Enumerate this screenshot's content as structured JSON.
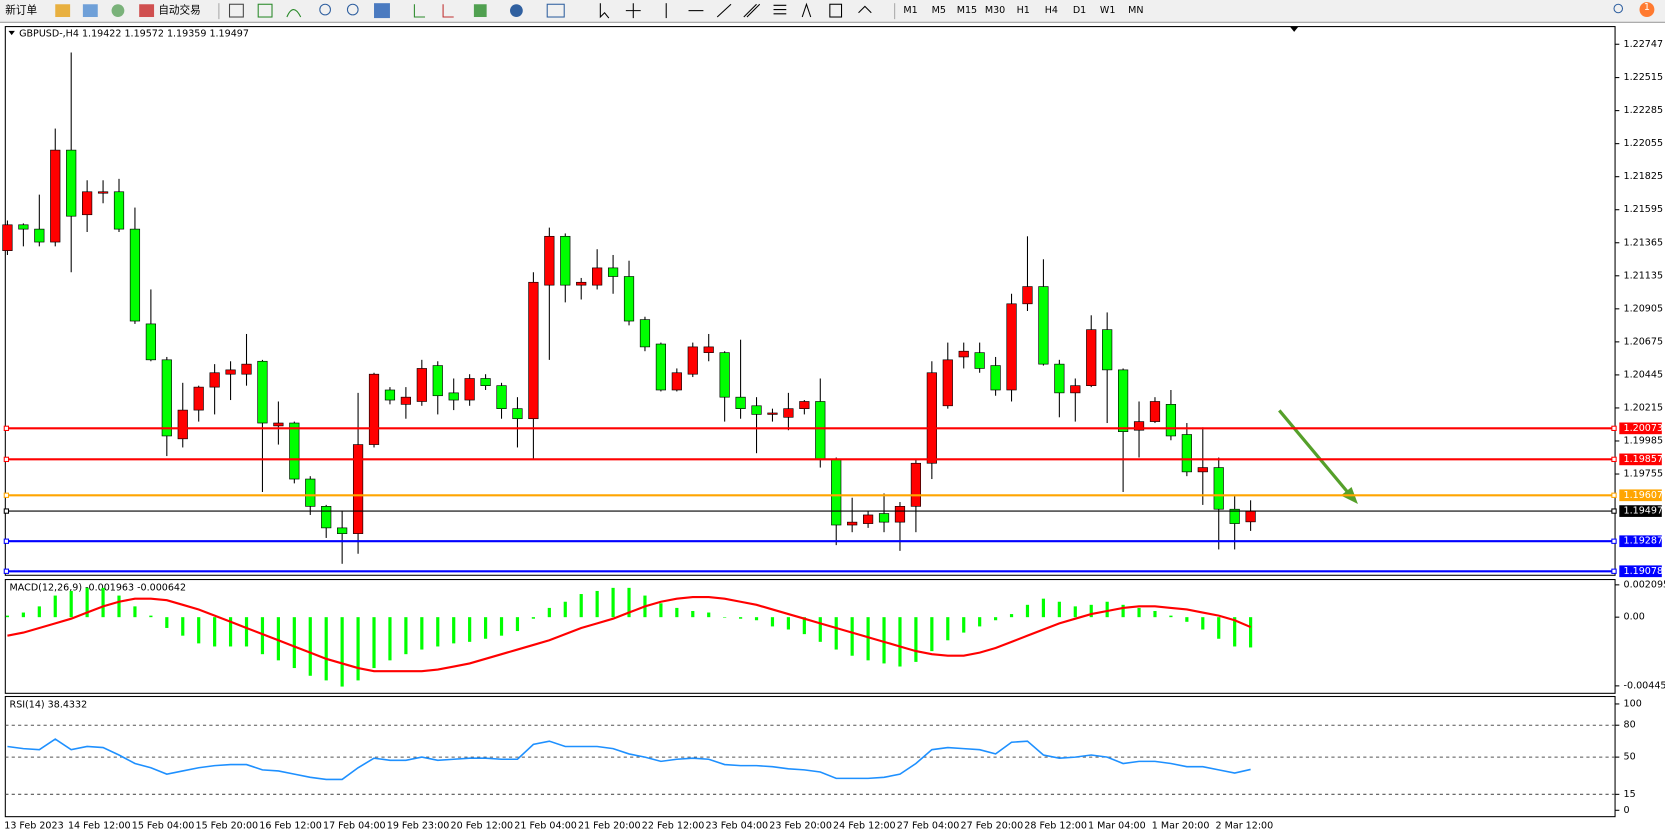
{
  "toolbar": {
    "new_order": "新订单",
    "auto_trade": "自动交易",
    "timeframes": [
      "M1",
      "M5",
      "M15",
      "M30",
      "H1",
      "H4",
      "D1",
      "W1",
      "MN"
    ],
    "badge": "1"
  },
  "chart_data": [
    {
      "type": "candlestick",
      "title": "GBPUSD-,H4  1.19422 1.19572 1.19359 1.19497",
      "categories": [
        "13 Feb 2023",
        null,
        null,
        null,
        "14 Feb 12:00",
        null,
        null,
        null,
        "15 Feb 04:00",
        null,
        null,
        null,
        "15 Feb 20:00",
        null,
        null,
        null,
        "16 Feb 12:00",
        null,
        null,
        null,
        "17 Feb 04:00",
        null,
        null,
        null,
        "19 Feb 23:00",
        null,
        null,
        null,
        "20 Feb 12:00",
        null,
        null,
        null,
        "21 Feb 04:00",
        null,
        null,
        null,
        "21 Feb 20:00",
        null,
        null,
        null,
        "22 Feb 12:00",
        null,
        null,
        null,
        "23 Feb 04:00",
        null,
        null,
        null,
        "23 Feb 20:00",
        null,
        null,
        null,
        "24 Feb 12:00",
        null,
        null,
        null,
        "27 Feb 04:00",
        null,
        null,
        null,
        "27 Feb 20:00",
        null,
        null,
        null,
        "28 Feb 12:00",
        null,
        null,
        null,
        "1 Mar 04:00",
        null,
        null,
        null,
        "1 Mar 20:00",
        null,
        null,
        null,
        "2 Mar 12:00",
        null,
        null
      ],
      "open": [
        1.2131,
        1.2149,
        1.2146,
        1.2137,
        1.2201,
        1.2156,
        1.2171,
        1.2172,
        1.2146,
        1.208,
        1.2055,
        1.2,
        1.202,
        1.2036,
        1.2045,
        1.2045,
        1.2054,
        1.2009,
        1.2011,
        1.1972,
        1.1953,
        1.1938,
        1.1934,
        1.1996,
        1.2034,
        1.2024,
        1.2026,
        1.2051,
        1.2032,
        1.2027,
        1.2042,
        1.2037,
        1.2021,
        1.2014,
        1.2107,
        1.2141,
        1.2107,
        1.2107,
        1.2119,
        1.2113,
        1.2083,
        1.2066,
        1.2034,
        1.2045,
        1.206,
        1.206,
        1.2029,
        1.2023,
        1.2017,
        1.2015,
        1.2021,
        1.2026,
        1.1986,
        1.194,
        1.1941,
        1.1948,
        1.1942,
        1.1953,
        1.1983,
        1.2023,
        1.2057,
        1.206,
        1.2051,
        1.2034,
        1.2094,
        1.2106,
        1.2052,
        1.2032,
        1.2037,
        1.2076,
        1.2048,
        1.2006,
        1.2012,
        1.2024,
        1.2003,
        1.1977,
        1.198,
        1.1951,
        1.19422
      ],
      "high": [
        1.2152,
        1.215,
        1.217,
        1.2216,
        1.2269,
        1.218,
        1.218,
        1.2181,
        1.2161,
        1.2104,
        1.2057,
        1.2039,
        1.2037,
        1.2052,
        1.2054,
        1.2073,
        1.2055,
        1.2026,
        1.2012,
        1.1974,
        1.1954,
        1.195,
        1.2032,
        1.2046,
        1.2036,
        1.2036,
        1.2055,
        1.2054,
        1.2042,
        1.2045,
        1.2045,
        1.2039,
        1.2029,
        1.2116,
        1.2147,
        1.2143,
        1.2112,
        1.2132,
        1.2128,
        1.2124,
        1.2085,
        1.2067,
        1.2049,
        1.2067,
        1.2073,
        1.2061,
        1.2069,
        1.2029,
        1.2021,
        1.2032,
        1.2027,
        1.2042,
        1.1987,
        1.1959,
        1.195,
        1.1962,
        1.1956,
        1.1986,
        1.2054,
        1.2067,
        1.2067,
        1.2067,
        1.2057,
        1.2101,
        1.2141,
        1.2125,
        1.2055,
        1.2042,
        1.2086,
        1.2088,
        1.2049,
        1.2026,
        1.2029,
        1.2034,
        1.2011,
        1.2008,
        1.1987,
        1.196,
        1.19572
      ],
      "low": [
        1.2128,
        1.2134,
        1.2134,
        1.2134,
        1.2116,
        1.2144,
        1.2164,
        1.2144,
        1.208,
        1.2054,
        1.1988,
        1.1994,
        1.2012,
        1.2017,
        1.2027,
        1.2037,
        1.1963,
        1.1996,
        1.1969,
        1.1947,
        1.1931,
        1.1913,
        1.192,
        1.1994,
        1.2024,
        1.2014,
        1.2023,
        1.2017,
        1.202,
        1.2023,
        1.2034,
        1.2014,
        1.1994,
        1.1986,
        1.2055,
        1.2095,
        1.2097,
        1.2104,
        1.2101,
        1.2079,
        1.2061,
        1.2033,
        1.2033,
        1.2043,
        1.2054,
        1.2012,
        1.2014,
        1.199,
        1.2012,
        1.2006,
        1.2017,
        1.198,
        1.1926,
        1.1935,
        1.1938,
        1.1935,
        1.1922,
        1.1935,
        1.1972,
        1.2021,
        1.2049,
        1.2046,
        1.203,
        1.2026,
        1.2089,
        1.2051,
        1.2015,
        1.2012,
        1.2036,
        1.2011,
        1.1963,
        1.1987,
        1.2011,
        1.1999,
        1.1974,
        1.1954,
        1.1923,
        1.1923,
        1.19359
      ],
      "close": [
        1.2149,
        1.2146,
        1.2137,
        1.2201,
        1.2155,
        1.2172,
        1.2172,
        1.2146,
        1.2082,
        1.2055,
        1.2002,
        1.202,
        1.2036,
        1.2046,
        1.2048,
        1.2052,
        1.2011,
        1.2011,
        1.1972,
        1.1953,
        1.1938,
        1.1934,
        1.1996,
        1.2045,
        1.2027,
        1.2029,
        1.2049,
        1.203,
        1.2027,
        1.2042,
        1.2037,
        1.2021,
        1.2014,
        1.2109,
        1.2141,
        1.2107,
        1.2109,
        1.2119,
        1.2113,
        1.2082,
        1.2064,
        1.2034,
        1.2046,
        1.2064,
        1.2064,
        1.2029,
        1.2021,
        1.2017,
        1.2018,
        1.2021,
        1.2026,
        1.1986,
        1.194,
        1.1942,
        1.1947,
        1.1942,
        1.1953,
        1.1983,
        1.2046,
        1.2055,
        1.2061,
        1.2049,
        1.2034,
        1.2094,
        1.2106,
        1.2052,
        1.2032,
        1.2037,
        1.2076,
        1.2048,
        1.2005,
        1.2012,
        1.2026,
        1.2002,
        1.1977,
        1.198,
        1.1951,
        1.1941,
        1.19497
      ],
      "up_color": "#ff0000",
      "down_color": "#00ff00",
      "ylim": [
        1.1905,
        1.2287
      ],
      "yticks": [
        1.22747,
        1.22515,
        1.22285,
        1.22055,
        1.21825,
        1.21595,
        1.21365,
        1.21135,
        1.20905,
        1.20675,
        1.20445,
        1.20215,
        1.19985,
        1.19755
      ],
      "levels": [
        {
          "value": 1.20073,
          "color": "#ff0000"
        },
        {
          "value": 1.19857,
          "color": "#ff0000"
        },
        {
          "value": 1.19607,
          "color": "#ffa500"
        },
        {
          "value": 1.19497,
          "color": "#000000"
        },
        {
          "value": 1.19287,
          "color": "#0000ff"
        },
        {
          "value": 1.19078,
          "color": "#0000ff"
        }
      ]
    },
    {
      "type": "macd",
      "title": "MACD(12,26,9) -0.001963 -0.000642",
      "color": "#00ff00",
      "signal_color": "#ff0000",
      "values": [
        0.0001,
        0.0003,
        0.0007,
        0.0014,
        0.0017,
        0.0019,
        0.0019,
        0.0014,
        0.0007,
        0.0001,
        -0.0007,
        -0.0012,
        -0.0017,
        -0.0019,
        -0.0019,
        -0.0019,
        -0.0024,
        -0.0028,
        -0.0033,
        -0.0038,
        -0.0041,
        -0.0045,
        -0.0041,
        -0.0033,
        -0.0028,
        -0.0024,
        -0.0021,
        -0.0019,
        -0.0017,
        -0.0016,
        -0.0014,
        -0.0012,
        -0.0009,
        -0.0001,
        0.0006,
        0.001,
        0.0015,
        0.0017,
        0.0019,
        0.0019,
        0.0014,
        0.0009,
        0.0006,
        0.0004,
        0.0003,
        0,
        -0.0001,
        -0.0002,
        -0.0006,
        -0.0008,
        -0.0011,
        -0.0016,
        -0.0021,
        -0.0025,
        -0.0028,
        -0.003,
        -0.0032,
        -0.0029,
        -0.0022,
        -0.0015,
        -0.001,
        -0.0006,
        -0.0002,
        0.0002,
        0.0008,
        0.0012,
        0.001,
        0.0007,
        0.0008,
        0.001,
        0.0008,
        0.0006,
        0.0004,
        0.0001,
        -0.0003,
        -0.0008,
        -0.0014,
        -0.0019,
        -0.001963
      ],
      "signal_values": [
        -0.0012,
        -0.001,
        -0.0007,
        -0.0004,
        -0.0001,
        0.0003,
        0.0007,
        0.001,
        0.0012,
        0.0012,
        0.0011,
        0.0008,
        0.0005,
        0.0001,
        -0.0003,
        -0.0007,
        -0.0011,
        -0.0015,
        -0.0019,
        -0.0023,
        -0.0027,
        -0.003,
        -0.0033,
        -0.0035,
        -0.0035,
        -0.0035,
        -0.0035,
        -0.0034,
        -0.0032,
        -0.003,
        -0.0027,
        -0.0024,
        -0.0021,
        -0.0018,
        -0.0015,
        -0.0011,
        -0.0007,
        -0.0004,
        -0.0001,
        0.0003,
        0.0007,
        0.001,
        0.0012,
        0.0013,
        0.0013,
        0.0012,
        0.001,
        0.0008,
        0.0005,
        0.0002,
        -0.0001,
        -0.0004,
        -0.0007,
        -0.001,
        -0.0013,
        -0.0016,
        -0.0019,
        -0.0022,
        -0.0024,
        -0.0025,
        -0.0025,
        -0.0023,
        -0.002,
        -0.0016,
        -0.0012,
        -0.0008,
        -0.0004,
        -0.0001,
        0.0002,
        0.0004,
        0.0006,
        0.0007,
        0.0007,
        0.0006,
        0.0005,
        0.0003,
        0.0001,
        -0.0002,
        -0.000642
      ],
      "ylim": [
        -0.004455,
        0.002095
      ],
      "yticks": [
        0.002095,
        {
          "value": 0,
          "label": "0.00"
        },
        -0.004455
      ]
    },
    {
      "type": "line",
      "title": "RSI(14) 38.4332",
      "color": "#1e90ff",
      "values": [
        60,
        58,
        57,
        67,
        57,
        60,
        59,
        52,
        44,
        40,
        34,
        37,
        40,
        42,
        43,
        43,
        38,
        37,
        34,
        31,
        29,
        29,
        40,
        49,
        47,
        47,
        50,
        47,
        48,
        49,
        49,
        48,
        48,
        62,
        65,
        60,
        60,
        60,
        58,
        53,
        50,
        46,
        48,
        49,
        48,
        43,
        42,
        42,
        41,
        39,
        38,
        36,
        30,
        30,
        30,
        31,
        34,
        44,
        57,
        59,
        58,
        57,
        53,
        64,
        65,
        52,
        49,
        50,
        52,
        50,
        44,
        46,
        46,
        44,
        41,
        41,
        38,
        35,
        38.4332
      ],
      "ylim": [
        0,
        100
      ],
      "yticks": [
        100,
        80,
        50,
        15,
        0
      ],
      "levels": [
        80,
        50,
        15
      ]
    }
  ]
}
